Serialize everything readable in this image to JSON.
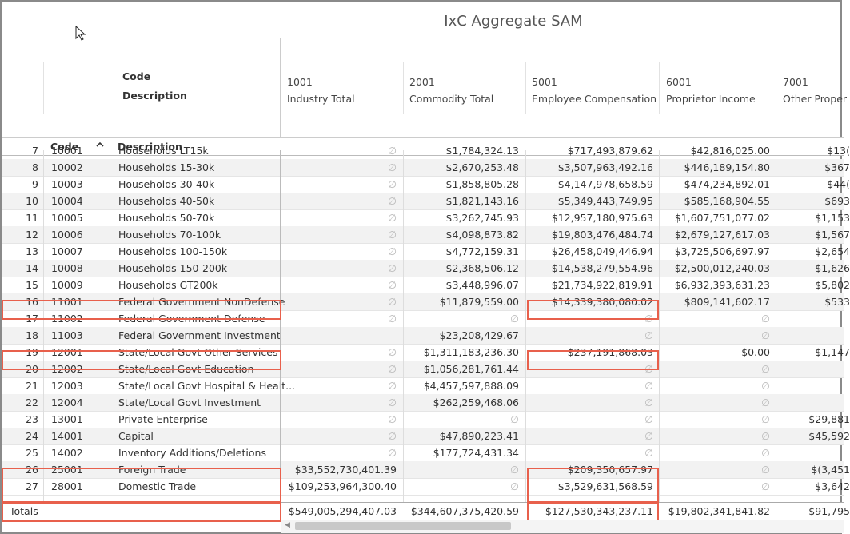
{
  "title": "IxC Aggregate SAM",
  "row_header_labels": {
    "code": "Code",
    "description": "Description"
  },
  "columns": [
    {
      "code": "1001",
      "name": "Industry Total"
    },
    {
      "code": "2001",
      "name": "Commodity Total"
    },
    {
      "code": "5001",
      "name": "Employee Compensation"
    },
    {
      "code": "6001",
      "name": "Proprietor Income"
    },
    {
      "code": "7001",
      "name": "Other Proper"
    }
  ],
  "subheader": {
    "code": "Code",
    "description": "Description"
  },
  "null_symbol": "∅",
  "rows": [
    {
      "n": "7",
      "code": "10001",
      "desc": "Households LT15k",
      "v": [
        "∅",
        "$1,784,324.13",
        "$717,493,879.62",
        "$42,816,025.00",
        "$13("
      ]
    },
    {
      "n": "8",
      "code": "10002",
      "desc": "Households 15-30k",
      "v": [
        "∅",
        "$2,670,253.48",
        "$3,507,963,492.16",
        "$446,189,154.80",
        "$367"
      ]
    },
    {
      "n": "9",
      "code": "10003",
      "desc": "Households 30-40k",
      "v": [
        "∅",
        "$1,858,805.28",
        "$4,147,978,658.59",
        "$474,234,892.01",
        "$44("
      ]
    },
    {
      "n": "10",
      "code": "10004",
      "desc": "Households 40-50k",
      "v": [
        "∅",
        "$1,821,143.16",
        "$5,349,443,749.95",
        "$585,168,904.55",
        "$693"
      ]
    },
    {
      "n": "11",
      "code": "10005",
      "desc": "Households 50-70k",
      "v": [
        "∅",
        "$3,262,745.93",
        "$12,957,180,975.63",
        "$1,607,751,077.02",
        "$1,153"
      ]
    },
    {
      "n": "12",
      "code": "10006",
      "desc": "Households 70-100k",
      "v": [
        "∅",
        "$4,098,873.82",
        "$19,803,476,484.74",
        "$2,679,127,617.03",
        "$1,567"
      ]
    },
    {
      "n": "13",
      "code": "10007",
      "desc": "Households 100-150k",
      "v": [
        "∅",
        "$4,772,159.31",
        "$26,458,049,446.94",
        "$3,725,506,697.97",
        "$2,654"
      ]
    },
    {
      "n": "14",
      "code": "10008",
      "desc": "Households 150-200k",
      "v": [
        "∅",
        "$2,368,506.12",
        "$14,538,279,554.96",
        "$2,500,012,240.03",
        "$1,626"
      ]
    },
    {
      "n": "15",
      "code": "10009",
      "desc": "Households GT200k",
      "v": [
        "∅",
        "$3,448,996.07",
        "$21,734,922,819.91",
        "$6,932,393,631.23",
        "$5,802"
      ]
    },
    {
      "n": "16",
      "code": "11001",
      "desc": "Federal Government NonDefense",
      "v": [
        "∅",
        "$11,879,559.00",
        "$14,339,380,080.02",
        "$809,141,602.17",
        "$533"
      ]
    },
    {
      "n": "17",
      "code": "11002",
      "desc": "Federal Government Defense",
      "v": [
        "∅",
        "∅",
        "∅",
        "∅",
        ""
      ]
    },
    {
      "n": "18",
      "code": "11003",
      "desc": "Federal Government Investment",
      "v": [
        "",
        "$23,208,429.67",
        "∅",
        "∅",
        ""
      ]
    },
    {
      "n": "19",
      "code": "12001",
      "desc": "State/Local Govt Other Services",
      "v": [
        "∅",
        "$1,311,183,236.30",
        "$237,191,868.03",
        "$0.00",
        "$1,147"
      ]
    },
    {
      "n": "20",
      "code": "12002",
      "desc": "State/Local Govt Education",
      "v": [
        "∅",
        "$1,056,281,761.44",
        "∅",
        "∅",
        ""
      ]
    },
    {
      "n": "21",
      "code": "12003",
      "desc": "State/Local Govt Hospital & Healt...",
      "v": [
        "∅",
        "$4,457,597,888.09",
        "∅",
        "∅",
        ""
      ]
    },
    {
      "n": "22",
      "code": "12004",
      "desc": "State/Local Govt Investment",
      "v": [
        "∅",
        "$262,259,468.06",
        "∅",
        "∅",
        ""
      ]
    },
    {
      "n": "23",
      "code": "13001",
      "desc": "Private Enterprise",
      "v": [
        "∅",
        "∅",
        "∅",
        "∅",
        "$29,881"
      ]
    },
    {
      "n": "24",
      "code": "14001",
      "desc": "Capital",
      "v": [
        "∅",
        "$47,890,223.41",
        "∅",
        "∅",
        "$45,592"
      ]
    },
    {
      "n": "25",
      "code": "14002",
      "desc": "Inventory Additions/Deletions",
      "v": [
        "∅",
        "$177,724,431.34",
        "∅",
        "∅",
        ""
      ]
    },
    {
      "n": "26",
      "code": "25001",
      "desc": "Foreign Trade",
      "v": [
        "$33,552,730,401.39",
        "∅",
        "$209,350,657.97",
        "∅",
        "$(3,451"
      ]
    },
    {
      "n": "27",
      "code": "28001",
      "desc": "Domestic Trade",
      "v": [
        "$109,253,964,300.40",
        "∅",
        "$3,529,631,568.59",
        "∅",
        "$3,642"
      ]
    }
  ],
  "totals": {
    "label": "Totals",
    "v": [
      "$549,005,294,407.03",
      "$344,607,375,420.59",
      "$127,530,343,237.11",
      "$19,802,341,841.82",
      "$91,795"
    ]
  }
}
